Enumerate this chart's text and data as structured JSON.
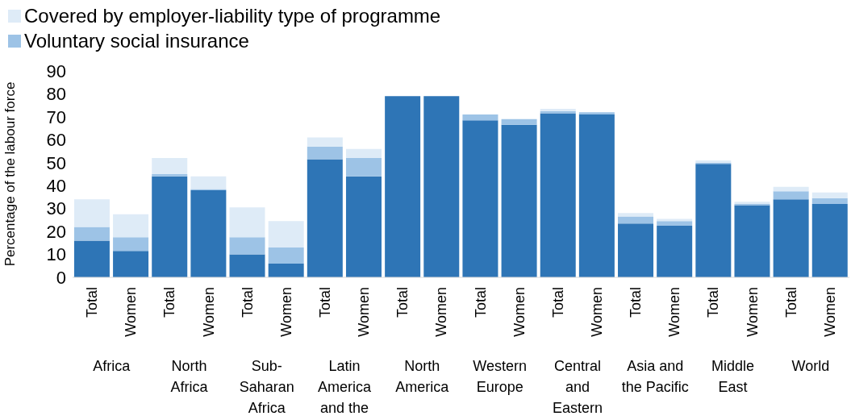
{
  "chart_data": {
    "type": "bar",
    "stacked": true,
    "ylabel": "Percentage of the labour force",
    "categories": [
      "Total",
      "Women",
      "Total",
      "Women",
      "Total",
      "Women",
      "Total",
      "Women",
      "Total",
      "Women",
      "Total",
      "Women",
      "Total",
      "Women",
      "Total",
      "Women",
      "Total",
      "Women",
      "Total",
      "Women"
    ],
    "series": [
      {
        "color": "#2e75b6",
        "values": [
          16,
          11.5,
          44,
          38,
          10,
          6,
          51.5,
          44,
          79,
          79,
          68.5,
          66.5,
          71.5,
          71,
          23.5,
          22.5,
          49.5,
          31.5,
          34,
          32
        ]
      },
      {
        "name": "Voluntary social insurance",
        "color": "#9dc3e6",
        "values": [
          6,
          6,
          1,
          0.5,
          7.5,
          7,
          5.5,
          8,
          0,
          0,
          2.5,
          2.5,
          1,
          1,
          3,
          2,
          0.5,
          0.5,
          3.5,
          2.5
        ]
      },
      {
        "name": "Covered by employer-liability type of programme",
        "color": "#deebf7",
        "values": [
          12,
          10,
          7,
          5.5,
          13,
          11.5,
          4,
          4,
          0,
          0,
          0,
          0,
          1,
          0,
          1.5,
          1,
          1,
          1,
          2,
          2.5
        ]
      }
    ],
    "annotations": [
      "Africa",
      "North\nAfrica",
      "Sub-\nSaharan\nAfrica",
      "Latin\nAmerica\nand the",
      "North\nAmerica",
      "Western\nEurope",
      "Central\nand\nEastern",
      "Asia and\nthe Pacific",
      "Middle\nEast",
      "World"
    ],
    "ylim": [
      0,
      90
    ],
    "yticks": [
      0,
      10,
      20,
      30,
      40,
      50,
      60,
      70,
      80,
      90
    ],
    "grid": false,
    "legend": "top left"
  }
}
